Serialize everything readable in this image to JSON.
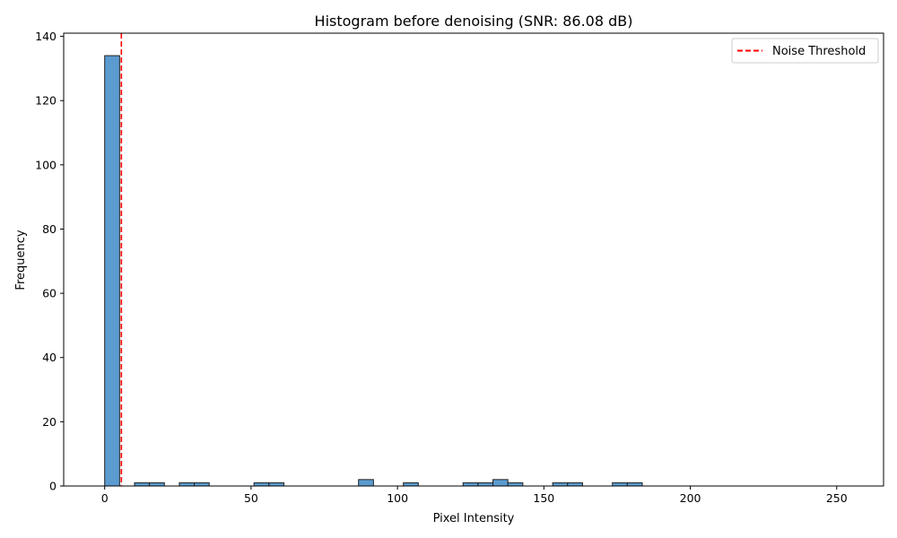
{
  "chart_data": {
    "type": "bar",
    "title": "Histogram before denoising (SNR: 86.08 dB)",
    "xlabel": "Pixel Intensity",
    "ylabel": "Frequency",
    "xlim": [
      -14,
      266
    ],
    "ylim": [
      0,
      141
    ],
    "xticks": [
      0,
      50,
      100,
      150,
      200,
      250
    ],
    "yticks": [
      0,
      20,
      40,
      60,
      80,
      100,
      120,
      140
    ],
    "bin_width": 5.1,
    "bins": [
      {
        "x0": 0,
        "count": 134
      },
      {
        "x0": 10.2,
        "count": 1
      },
      {
        "x0": 15.3,
        "count": 1
      },
      {
        "x0": 25.5,
        "count": 1
      },
      {
        "x0": 30.6,
        "count": 1
      },
      {
        "x0": 51.0,
        "count": 1
      },
      {
        "x0": 56.1,
        "count": 1
      },
      {
        "x0": 86.7,
        "count": 2
      },
      {
        "x0": 102.0,
        "count": 1
      },
      {
        "x0": 122.4,
        "count": 1
      },
      {
        "x0": 127.5,
        "count": 1
      },
      {
        "x0": 132.6,
        "count": 2
      },
      {
        "x0": 137.7,
        "count": 1
      },
      {
        "x0": 153.0,
        "count": 1
      },
      {
        "x0": 158.1,
        "count": 1
      },
      {
        "x0": 173.4,
        "count": 1
      },
      {
        "x0": 178.5,
        "count": 1
      }
    ],
    "threshold": {
      "x": 5.7,
      "label": "Noise Threshold",
      "color": "#ff0000"
    },
    "bar_color": "#5b9bd0",
    "bar_edge_color": "#222222",
    "legend_position": "top-right",
    "grid": false
  }
}
